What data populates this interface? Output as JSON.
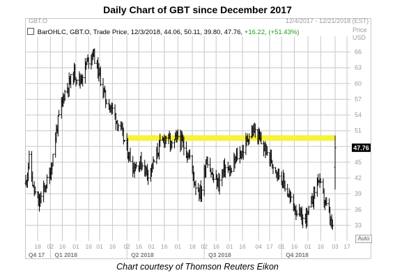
{
  "header": {
    "title": "Daily Chart of GBT since December 2017",
    "symbol_tag": "GBT.O",
    "date_range": "12/4/2017 - 12/21/2018 (EST)",
    "price_axis_label": "Price",
    "price_axis_unit": "USD"
  },
  "legend": {
    "text": "BarOHLC, GBT.O, Trade Price, 12/3/2018, 44.06, 50.11, 39.80, 47.76,",
    "change": "+16.22, (+51.43%)"
  },
  "auto_label": "Auto",
  "caption": "Chart courtesy of Thomson Reuters Eikon",
  "colors": {
    "bars": "#000000",
    "highlight": "#f7f23a",
    "last_price_bg": "#000000",
    "grid": "#c8c8c8"
  },
  "chart_data": {
    "type": "bar",
    "subtype": "ohlc",
    "title": "Daily Chart of GBT since December 2017",
    "ylim": [
      30,
      69
    ],
    "y_ticks": [
      33,
      36,
      39,
      42,
      45,
      48,
      51,
      54,
      57,
      60,
      63,
      66
    ],
    "grid": true,
    "x_ticks": [
      {
        "label": "18",
        "date": "2017-12-18"
      },
      {
        "label": "02",
        "date": "2018-01-02"
      },
      {
        "label": "16",
        "date": "2018-01-16"
      },
      {
        "label": "01",
        "date": "2018-02-01"
      },
      {
        "label": "16",
        "date": "2018-02-16"
      },
      {
        "label": "01",
        "date": "2018-03-01"
      },
      {
        "label": "16",
        "date": "2018-03-16"
      },
      {
        "label": "02",
        "date": "2018-04-02"
      },
      {
        "label": "16",
        "date": "2018-04-16"
      },
      {
        "label": "01",
        "date": "2018-05-01"
      },
      {
        "label": "16",
        "date": "2018-05-16"
      },
      {
        "label": "01",
        "date": "2018-06-01"
      },
      {
        "label": "18",
        "date": "2018-06-18"
      },
      {
        "label": "02",
        "date": "2018-07-02"
      },
      {
        "label": "16",
        "date": "2018-07-16"
      },
      {
        "label": "01",
        "date": "2018-08-01"
      },
      {
        "label": "16",
        "date": "2018-08-16"
      },
      {
        "label": "04",
        "date": "2018-09-04"
      },
      {
        "label": "17",
        "date": "2018-09-17"
      },
      {
        "label": "01",
        "date": "2018-10-01"
      },
      {
        "label": "16",
        "date": "2018-10-16"
      },
      {
        "label": "01",
        "date": "2018-11-01"
      },
      {
        "label": "16",
        "date": "2018-11-16"
      },
      {
        "label": "03",
        "date": "2018-12-03"
      },
      {
        "label": "17",
        "date": "2018-12-17"
      }
    ],
    "quarters": [
      {
        "label": "Q4 17",
        "date": "2017-12-04"
      },
      {
        "label": "Q1 2018",
        "date": "2018-01-02"
      },
      {
        "label": "Q2 2018",
        "date": "2018-04-02"
      },
      {
        "label": "Q3 2018",
        "date": "2018-07-02"
      },
      {
        "label": "Q4 2018",
        "date": "2018-10-01"
      }
    ],
    "highlight_level": 49.6,
    "highlight_range": [
      "2018-04-02",
      "2018-12-03"
    ],
    "last_price": 47.76,
    "x_range": [
      "2017-12-04",
      "2018-12-21"
    ],
    "price_path": [
      {
        "date": "2017-12-04",
        "close": 41
      },
      {
        "date": "2017-12-08",
        "close": 45.5
      },
      {
        "date": "2017-12-13",
        "close": 40
      },
      {
        "date": "2017-12-19",
        "close": 37
      },
      {
        "date": "2017-12-26",
        "close": 40
      },
      {
        "date": "2018-01-02",
        "close": 43
      },
      {
        "date": "2018-01-10",
        "close": 52
      },
      {
        "date": "2018-01-18",
        "close": 58
      },
      {
        "date": "2018-01-30",
        "close": 62
      },
      {
        "date": "2018-02-06",
        "close": 60.5
      },
      {
        "date": "2018-02-14",
        "close": 64
      },
      {
        "date": "2018-02-21",
        "close": 66
      },
      {
        "date": "2018-02-28",
        "close": 62
      },
      {
        "date": "2018-03-08",
        "close": 57
      },
      {
        "date": "2018-03-16",
        "close": 55
      },
      {
        "date": "2018-03-26",
        "close": 51
      },
      {
        "date": "2018-04-03",
        "close": 47
      },
      {
        "date": "2018-04-10",
        "close": 44
      },
      {
        "date": "2018-04-18",
        "close": 45
      },
      {
        "date": "2018-04-27",
        "close": 43
      },
      {
        "date": "2018-05-04",
        "close": 45
      },
      {
        "date": "2018-05-10",
        "close": 48
      },
      {
        "date": "2018-05-18",
        "close": 50
      },
      {
        "date": "2018-05-25",
        "close": 48
      },
      {
        "date": "2018-06-01",
        "close": 50
      },
      {
        "date": "2018-06-08",
        "close": 48
      },
      {
        "date": "2018-06-15",
        "close": 46
      },
      {
        "date": "2018-06-21",
        "close": 41
      },
      {
        "date": "2018-06-28",
        "close": 39
      },
      {
        "date": "2018-07-05",
        "close": 46
      },
      {
        "date": "2018-07-12",
        "close": 42
      },
      {
        "date": "2018-07-19",
        "close": 41
      },
      {
        "date": "2018-07-26",
        "close": 44
      },
      {
        "date": "2018-08-02",
        "close": 43
      },
      {
        "date": "2018-08-09",
        "close": 46
      },
      {
        "date": "2018-08-16",
        "close": 47
      },
      {
        "date": "2018-08-23",
        "close": 50
      },
      {
        "date": "2018-08-30",
        "close": 51
      },
      {
        "date": "2018-09-06",
        "close": 49
      },
      {
        "date": "2018-09-13",
        "close": 47
      },
      {
        "date": "2018-09-20",
        "close": 45
      },
      {
        "date": "2018-09-27",
        "close": 43
      },
      {
        "date": "2018-10-04",
        "close": 41
      },
      {
        "date": "2018-10-11",
        "close": 38
      },
      {
        "date": "2018-10-18",
        "close": 36
      },
      {
        "date": "2018-10-25",
        "close": 34
      },
      {
        "date": "2018-11-01",
        "close": 35
      },
      {
        "date": "2018-11-08",
        "close": 39
      },
      {
        "date": "2018-11-13",
        "close": 42
      },
      {
        "date": "2018-11-20",
        "close": 38
      },
      {
        "date": "2018-11-26",
        "close": 35
      },
      {
        "date": "2018-11-30",
        "close": 32
      },
      {
        "date": "2018-12-03",
        "close": 47.76
      }
    ]
  }
}
